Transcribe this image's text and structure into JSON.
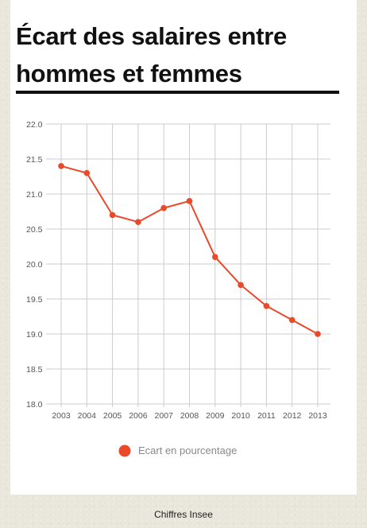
{
  "title": "Écart des salaires entre hommes et femmes",
  "footer": "Chiffres Insee",
  "colors": {
    "line": "#e84a2a",
    "grid": "#cccccc",
    "rule": "#111111"
  },
  "chart_data": {
    "type": "line",
    "title": "Écart des salaires entre hommes et femmes",
    "xlabel": "",
    "ylabel": "",
    "categories": [
      "2003",
      "2004",
      "2005",
      "2006",
      "2007",
      "2008",
      "2009",
      "2010",
      "2011",
      "2012",
      "2013"
    ],
    "series": [
      {
        "name": "Ecart en pourcentage",
        "values": [
          21.4,
          21.3,
          20.7,
          20.6,
          20.8,
          20.9,
          20.1,
          19.7,
          19.4,
          19.2,
          19.0
        ]
      }
    ],
    "ylim": [
      18.0,
      22.0
    ],
    "yticks": [
      "22.0",
      "21.5",
      "21.0",
      "20.5",
      "20.0",
      "19.5",
      "19.0",
      "18.5",
      "18.0"
    ],
    "grid": true,
    "legend": "bottom"
  }
}
